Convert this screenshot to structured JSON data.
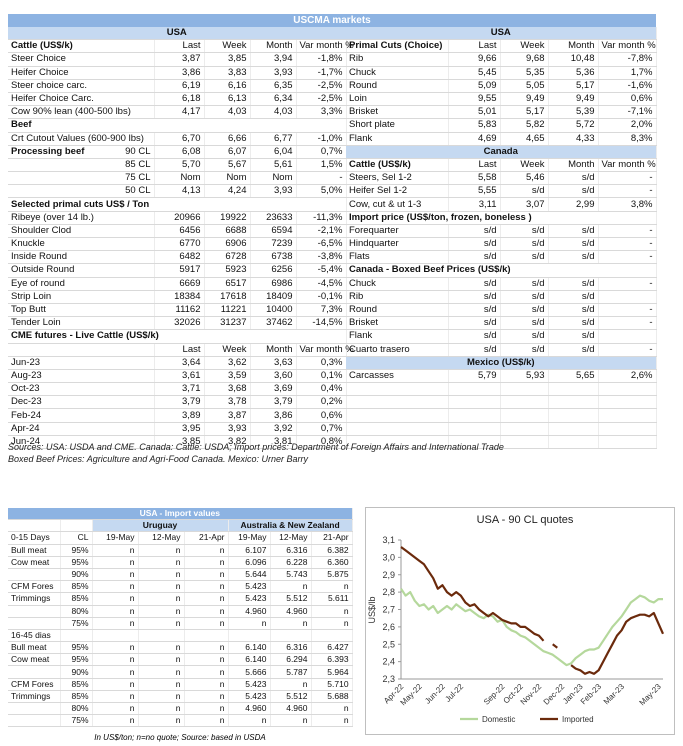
{
  "uscma": {
    "title": "USCMA markets",
    "left": [
      {
        "region": "USA"
      },
      {
        "heading": "Cattle (US$/k)",
        "columns": [
          "Last",
          "Week",
          "Month",
          "Var month %"
        ]
      },
      {
        "label": "Steer Choice",
        "values": [
          "3,87",
          "3,85",
          "3,94",
          "-1,8%"
        ]
      },
      {
        "label": "Heifer Choice",
        "values": [
          "3,86",
          "3,83",
          "3,93",
          "-1,7%"
        ]
      },
      {
        "label": "Steer choice carc.",
        "values": [
          "6,19",
          "6,16",
          "6,35",
          "-2,5%"
        ]
      },
      {
        "label": "Heifer Choice Carc.",
        "values": [
          "6,18",
          "6,13",
          "6,34",
          "-2,5%"
        ]
      },
      {
        "label": "Cow 90% lean (400-500 lbs)",
        "values": [
          "4,17",
          "4,03",
          "4,03",
          "3,3%"
        ]
      },
      {
        "section": "Beef"
      },
      {
        "label": "Crt Cutout Values (600-900 lbs)",
        "values": [
          "6,70",
          "6,66",
          "6,77",
          "-1,0%"
        ]
      },
      {
        "section": "Processing beef",
        "sublabel": "90 CL",
        "values": [
          "6,08",
          "6,07",
          "6,04",
          "0,7%"
        ]
      },
      {
        "sublabel": "85 CL",
        "values": [
          "5,70",
          "5,67",
          "5,61",
          "1,5%"
        ]
      },
      {
        "sublabel": "75 CL",
        "values": [
          "Nom",
          "Nom",
          "Nom",
          "-"
        ]
      },
      {
        "sublabel": "50 CL",
        "values": [
          "4,13",
          "4,24",
          "3,93",
          "5,0%"
        ]
      },
      {
        "section": "Selected primal cuts US$ / Ton"
      },
      {
        "label": "Ribeye (over 14 lb.)",
        "values": [
          "20966",
          "19922",
          "23633",
          "-11,3%"
        ]
      },
      {
        "label": "Shoulder Clod",
        "values": [
          "6456",
          "6688",
          "6594",
          "-2,1%"
        ]
      },
      {
        "label": "Knuckle",
        "values": [
          "6770",
          "6906",
          "7239",
          "-6,5%"
        ]
      },
      {
        "label": "Inside Round",
        "values": [
          "6482",
          "6728",
          "6738",
          "-3,8%"
        ]
      },
      {
        "label": "Outside Round",
        "values": [
          "5917",
          "5923",
          "6256",
          "-5,4%"
        ]
      },
      {
        "label": "Eye of round",
        "values": [
          "6669",
          "6517",
          "6986",
          "-4,5%"
        ]
      },
      {
        "label": "Strip Loin",
        "values": [
          "18384",
          "17618",
          "18409",
          "-0,1%"
        ]
      },
      {
        "label": "Top Butt",
        "values": [
          "11162",
          "11221",
          "10400",
          "7,3%"
        ]
      },
      {
        "label": "Tender Loin",
        "values": [
          "32026",
          "31237",
          "37462",
          "-14,5%"
        ]
      },
      {
        "section": "CME futures - Live Cattle (US$/k)"
      },
      {
        "columns": [
          "Last",
          "Week",
          "Month",
          "Var month %"
        ]
      },
      {
        "label": "Jun-23",
        "values": [
          "3,64",
          "3,62",
          "3,63",
          "0,3%"
        ]
      },
      {
        "label": "Aug-23",
        "values": [
          "3,61",
          "3,59",
          "3,60",
          "0,1%"
        ]
      },
      {
        "label": "Oct-23",
        "values": [
          "3,71",
          "3,68",
          "3,69",
          "0,4%"
        ]
      },
      {
        "label": "Dec-23",
        "values": [
          "3,79",
          "3,78",
          "3,79",
          "0,2%"
        ]
      },
      {
        "label": "Feb-24",
        "values": [
          "3,89",
          "3,87",
          "3,86",
          "0,6%"
        ]
      },
      {
        "label": "Apr-24",
        "values": [
          "3,95",
          "3,93",
          "3,92",
          "0,7%"
        ]
      },
      {
        "label": "Jun-24",
        "values": [
          "3,85",
          "3,82",
          "3,81",
          "0,8%"
        ]
      }
    ],
    "right": [
      {
        "region": "USA"
      },
      {
        "heading": "Primal Cuts (Choice)",
        "columns": [
          "Last",
          "Week",
          "Month",
          "Var month %"
        ]
      },
      {
        "label": "Rib",
        "values": [
          "9,66",
          "9,68",
          "10,48",
          "-7,8%"
        ]
      },
      {
        "label": "Chuck",
        "values": [
          "5,45",
          "5,35",
          "5,36",
          "1,7%"
        ]
      },
      {
        "label": "Round",
        "values": [
          "5,09",
          "5,05",
          "5,17",
          "-1,6%"
        ]
      },
      {
        "label": "Loin",
        "values": [
          "9,55",
          "9,49",
          "9,49",
          "0,6%"
        ]
      },
      {
        "label": "Brisket",
        "values": [
          "5,01",
          "5,17",
          "5,39",
          "-7,1%"
        ]
      },
      {
        "label": "Short plate",
        "values": [
          "5,83",
          "5,82",
          "5,72",
          "2,0%"
        ]
      },
      {
        "label": "Flank",
        "values": [
          "4,69",
          "4,65",
          "4,33",
          "8,3%"
        ]
      },
      {
        "region": "Canada"
      },
      {
        "heading": "Cattle (US$/k)",
        "columns": [
          "Last",
          "Week",
          "Month",
          "Var month %"
        ]
      },
      {
        "label": "Steers, Sel 1-2",
        "values": [
          "5,58",
          "5,46",
          "s/d",
          "-"
        ]
      },
      {
        "label": "Heifer Sel 1-2",
        "values": [
          "5,55",
          "s/d",
          "s/d",
          "-"
        ]
      },
      {
        "label": "Cow, cut & ut 1-3",
        "values": [
          "3,11",
          "3,07",
          "2,99",
          "3,8%"
        ]
      },
      {
        "section": "Import price (US$/ton, frozen, boneless )"
      },
      {
        "label": "Forequarter",
        "values": [
          "s/d",
          "s/d",
          "s/d",
          "-"
        ]
      },
      {
        "label": "Hindquarter",
        "values": [
          "s/d",
          "s/d",
          "s/d",
          "-"
        ]
      },
      {
        "label": "Flats",
        "values": [
          "s/d",
          "s/d",
          "s/d",
          "-"
        ]
      },
      {
        "section": "Canada - Boxed Beef Prices (US$/k)"
      },
      {
        "label": "Chuck",
        "values": [
          "s/d",
          "s/d",
          "s/d",
          "-"
        ]
      },
      {
        "label": "Rib",
        "values": [
          "s/d",
          "s/d",
          "s/d"
        ]
      },
      {
        "label": "Round",
        "values": [
          "s/d",
          "s/d",
          "s/d",
          "-"
        ]
      },
      {
        "label": "Brisket",
        "values": [
          "s/d",
          "s/d",
          "s/d",
          "-"
        ]
      },
      {
        "label": "Flank",
        "values": [
          "s/d",
          "s/d",
          "s/d"
        ]
      },
      {
        "label": "Cuarto trasero",
        "values": [
          "s/d",
          "s/d",
          "s/d",
          "-"
        ]
      },
      {
        "region": "Mexico (US$/k)"
      },
      {
        "label": "Carcasses",
        "values": [
          "5,79",
          "5,93",
          "5,65",
          "2,6%"
        ]
      }
    ],
    "sources": [
      "Sources: USA: USDA and CME. Canada: Cattle: USDA; Import prices: Department of Foreign Affairs and International Trade",
      "Boxed Beef Prices: Agriculture and Agri-Food Canada. Mexico: Urner Barry"
    ]
  },
  "import_values": {
    "title": "USA - Import values",
    "origins": [
      "Uruguay",
      "Australia & New Zealand"
    ],
    "columns": [
      "CL",
      "19-May",
      "12-May",
      "21-Apr",
      "19-May",
      "12-May",
      "21-Apr"
    ],
    "groups": [
      {
        "name": "0-15 Days",
        "rows": [
          {
            "label": "Bull meat",
            "cl": "95%",
            "values": [
              "n",
              "n",
              "n",
              "6.107",
              "6.316",
              "6.382"
            ]
          },
          {
            "label": "Cow meat",
            "cl": "95%",
            "values": [
              "n",
              "n",
              "n",
              "6.096",
              "6.228",
              "6.360"
            ]
          },
          {
            "cl": "90%",
            "values": [
              "n",
              "n",
              "n",
              "5.644",
              "5.743",
              "5.875"
            ]
          },
          {
            "label": "CFM Fores",
            "cl": "85%",
            "values": [
              "n",
              "n",
              "n",
              "5.423",
              "n",
              "n"
            ]
          },
          {
            "label": "Trimmings",
            "cl": "85%",
            "values": [
              "n",
              "n",
              "n",
              "5.423",
              "5.512",
              "5.611"
            ]
          },
          {
            "cl": "80%",
            "values": [
              "n",
              "n",
              "n",
              "4.960",
              "4.960",
              "n"
            ]
          },
          {
            "cl": "75%",
            "values": [
              "n",
              "n",
              "n",
              "n",
              "n",
              "n"
            ]
          }
        ]
      },
      {
        "name": "16-45 dias",
        "rows": [
          {
            "label": "Bull meat",
            "cl": "95%",
            "values": [
              "n",
              "n",
              "n",
              "6.140",
              "6.316",
              "6.427"
            ]
          },
          {
            "label": "Cow meat",
            "cl": "95%",
            "values": [
              "n",
              "n",
              "n",
              "6.140",
              "6.294",
              "6.393"
            ]
          },
          {
            "cl": "90%",
            "values": [
              "n",
              "n",
              "n",
              "5.666",
              "5.787",
              "5.964"
            ]
          },
          {
            "label": "CFM Fores",
            "cl": "85%",
            "values": [
              "n",
              "n",
              "n",
              "5.423",
              "n",
              "5.710"
            ]
          },
          {
            "label": "Trimmings",
            "cl": "85%",
            "values": [
              "n",
              "n",
              "n",
              "5.423",
              "5.512",
              "5.688"
            ]
          },
          {
            "cl": "80%",
            "values": [
              "n",
              "n",
              "n",
              "4.960",
              "4.960",
              "n"
            ]
          },
          {
            "cl": "75%",
            "values": [
              "n",
              "n",
              "n",
              "n",
              "n",
              "n"
            ]
          }
        ]
      }
    ],
    "footnote": "In US$/ton; n=no quote; Source: based in USDA"
  },
  "chart_data": {
    "type": "line",
    "title": "USA - 90 CL quotes",
    "y_label": "US$/lb",
    "ylim": [
      2.3,
      3.1
    ],
    "yticks": [
      {
        "value": 2.3,
        "label": "2,3"
      },
      {
        "value": 2.4,
        "label": "2,4"
      },
      {
        "value": 2.5,
        "label": "2,5"
      },
      {
        "value": 2.6,
        "label": "2,6"
      },
      {
        "value": 2.7,
        "label": "2,7"
      },
      {
        "value": 2.8,
        "label": "2,8"
      },
      {
        "value": 2.9,
        "label": "2,9"
      },
      {
        "value": 3.0,
        "label": "3,0"
      },
      {
        "value": 3.1,
        "label": "3,1"
      }
    ],
    "categories": [
      "Apr-22",
      null,
      null,
      null,
      "May-22",
      null,
      null,
      null,
      null,
      "Jun-22",
      null,
      null,
      null,
      "Jul-22",
      null,
      null,
      null,
      null,
      null,
      null,
      null,
      null,
      "Sep-22",
      null,
      null,
      null,
      "Oct-22",
      null,
      null,
      null,
      "Nov-22",
      null,
      null,
      null,
      null,
      "Dec-22",
      null,
      null,
      null,
      "Jan-23",
      null,
      null,
      null,
      "Feb-23",
      null,
      null,
      null,
      null,
      "Mar-23",
      null,
      null,
      null,
      null,
      null,
      null,
      null,
      "May-23",
      null
    ],
    "series": [
      {
        "name": "Domestic",
        "color": "#b5d89c",
        "values": [
          2.82,
          2.78,
          2.8,
          2.75,
          2.72,
          2.73,
          2.7,
          2.72,
          2.68,
          2.7,
          2.72,
          2.7,
          2.73,
          2.71,
          2.69,
          2.7,
          2.68,
          2.66,
          2.65,
          2.67,
          2.66,
          2.63,
          2.64,
          2.6,
          2.58,
          2.57,
          2.55,
          2.54,
          2.52,
          2.5,
          2.48,
          2.46,
          2.45,
          2.44,
          2.42,
          2.4,
          2.38,
          2.39,
          2.42,
          2.44,
          2.46,
          2.47,
          2.47,
          2.48,
          2.52,
          2.56,
          2.6,
          2.63,
          2.66,
          2.7,
          2.74,
          2.76,
          2.78,
          2.77,
          2.75,
          2.74,
          2.76,
          2.76
        ]
      },
      {
        "name": "Imported",
        "color": "#6b2a0c",
        "values": [
          3.06,
          3.04,
          3.02,
          3.0,
          2.98,
          2.96,
          2.92,
          2.88,
          2.82,
          2.84,
          2.8,
          2.78,
          2.8,
          2.78,
          2.74,
          2.72,
          2.73,
          2.7,
          2.68,
          2.66,
          2.68,
          2.66,
          2.64,
          2.63,
          2.62,
          2.62,
          2.6,
          2.6,
          2.58,
          2.56,
          2.55,
          2.52,
          null,
          2.5,
          2.48,
          null,
          null,
          2.38,
          2.36,
          2.35,
          2.33,
          2.34,
          2.33,
          2.35,
          2.4,
          2.45,
          2.5,
          2.55,
          2.58,
          2.63,
          2.65,
          2.66,
          2.67,
          2.67,
          2.66,
          2.68,
          2.62,
          2.56
        ]
      }
    ],
    "grid": false
  }
}
